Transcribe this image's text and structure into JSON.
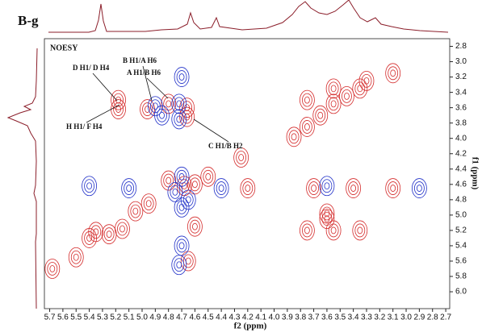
{
  "chart_data": {
    "type": "contour",
    "title": "B-g",
    "subtitle": "NOESY",
    "x_label": "f2 (ppm)",
    "y_label": "f1 (ppm)",
    "xlim": [
      5.74,
      2.67
    ],
    "ylim": [
      2.7,
      6.22
    ],
    "xticks": [
      5.7,
      5.6,
      5.5,
      5.4,
      5.3,
      5.2,
      5.1,
      {
        "value": 5,
        "label": "5.0"
      },
      4.9,
      4.8,
      4.7,
      4.6,
      4.5,
      4.4,
      4.3,
      4.2,
      4.1,
      {
        "value": 4,
        "label": "4.0"
      },
      3.9,
      3.8,
      3.7,
      3.6,
      3.5,
      3.4,
      3.3,
      3.2,
      3.1,
      {
        "value": 3,
        "label": "3.0"
      },
      2.9,
      2.8,
      2.7
    ],
    "yticks": [
      2.8,
      {
        "value": 3,
        "label": "3.0"
      },
      3.2,
      3.4,
      3.6,
      3.8,
      {
        "value": 4,
        "label": "4.0"
      },
      4.2,
      4.4,
      4.6,
      4.8,
      {
        "value": 5,
        "label": "5.0"
      },
      5.2,
      5.4,
      5.6,
      5.8,
      {
        "value": 6,
        "label": "6.0"
      }
    ],
    "annotations": [
      {
        "text": "D H1/ D H4"
      },
      {
        "text": "B H1/A H6"
      },
      {
        "text": "A H1/B H6"
      },
      {
        "text": "H H1/ F H4"
      },
      {
        "text": "C H1/B H2"
      }
    ],
    "series": [
      {
        "color": "#d42a2a",
        "x": [
          5.18,
          5.18,
          4.96,
          4.8,
          4.66,
          4.66,
          4.68,
          4.6,
          4.8,
          4.5,
          3.85,
          3.75,
          3.65,
          3.55,
          3.45,
          3.35,
          3.55,
          3.75,
          3.3,
          3.1,
          4.25,
          5.25,
          5.15,
          5.35,
          5.05,
          4.95,
          5.4,
          5.5,
          5.68,
          3.75,
          3.55,
          3.35,
          3.7,
          3.4,
          3.1,
          4.2,
          3.6,
          3.6,
          4.6,
          4.65
        ],
        "y": [
          3.62,
          3.5,
          3.62,
          3.55,
          3.6,
          3.72,
          4.62,
          4.6,
          4.55,
          4.5,
          3.98,
          3.85,
          3.7,
          3.55,
          3.45,
          3.35,
          3.35,
          3.5,
          3.25,
          3.15,
          4.25,
          5.25,
          5.18,
          5.22,
          4.95,
          4.85,
          5.3,
          5.55,
          5.7,
          5.2,
          5.2,
          5.2,
          4.65,
          4.65,
          4.65,
          4.65,
          4.98,
          5.05,
          5.15,
          5.6
        ]
      },
      {
        "color": "#2030c8",
        "x": [
          4.72,
          4.72,
          4.7,
          4.75,
          4.7,
          4.7,
          4.72,
          5.4,
          5.1,
          4.4,
          2.9,
          3.6,
          4.85,
          4.9,
          4.7,
          4.65
        ],
        "y": [
          3.55,
          3.75,
          3.2,
          4.7,
          4.9,
          5.4,
          5.65,
          4.62,
          4.65,
          4.65,
          4.65,
          4.62,
          3.7,
          3.58,
          4.5,
          4.8
        ]
      }
    ]
  }
}
